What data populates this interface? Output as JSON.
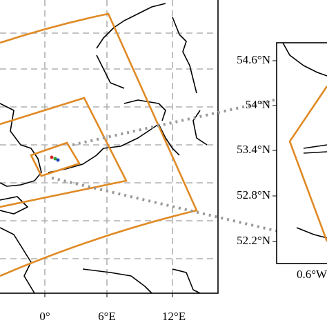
{
  "left_map": {
    "x_tick_labels": [
      "0°",
      "6°E",
      "12°E"
    ]
  },
  "right_map": {
    "y_tick_labels": [
      "54.6°N",
      "54°N",
      "53.4°N",
      "52.8°N",
      "52.2°N"
    ],
    "x_tick_labels": [
      "0.6°W"
    ]
  }
}
